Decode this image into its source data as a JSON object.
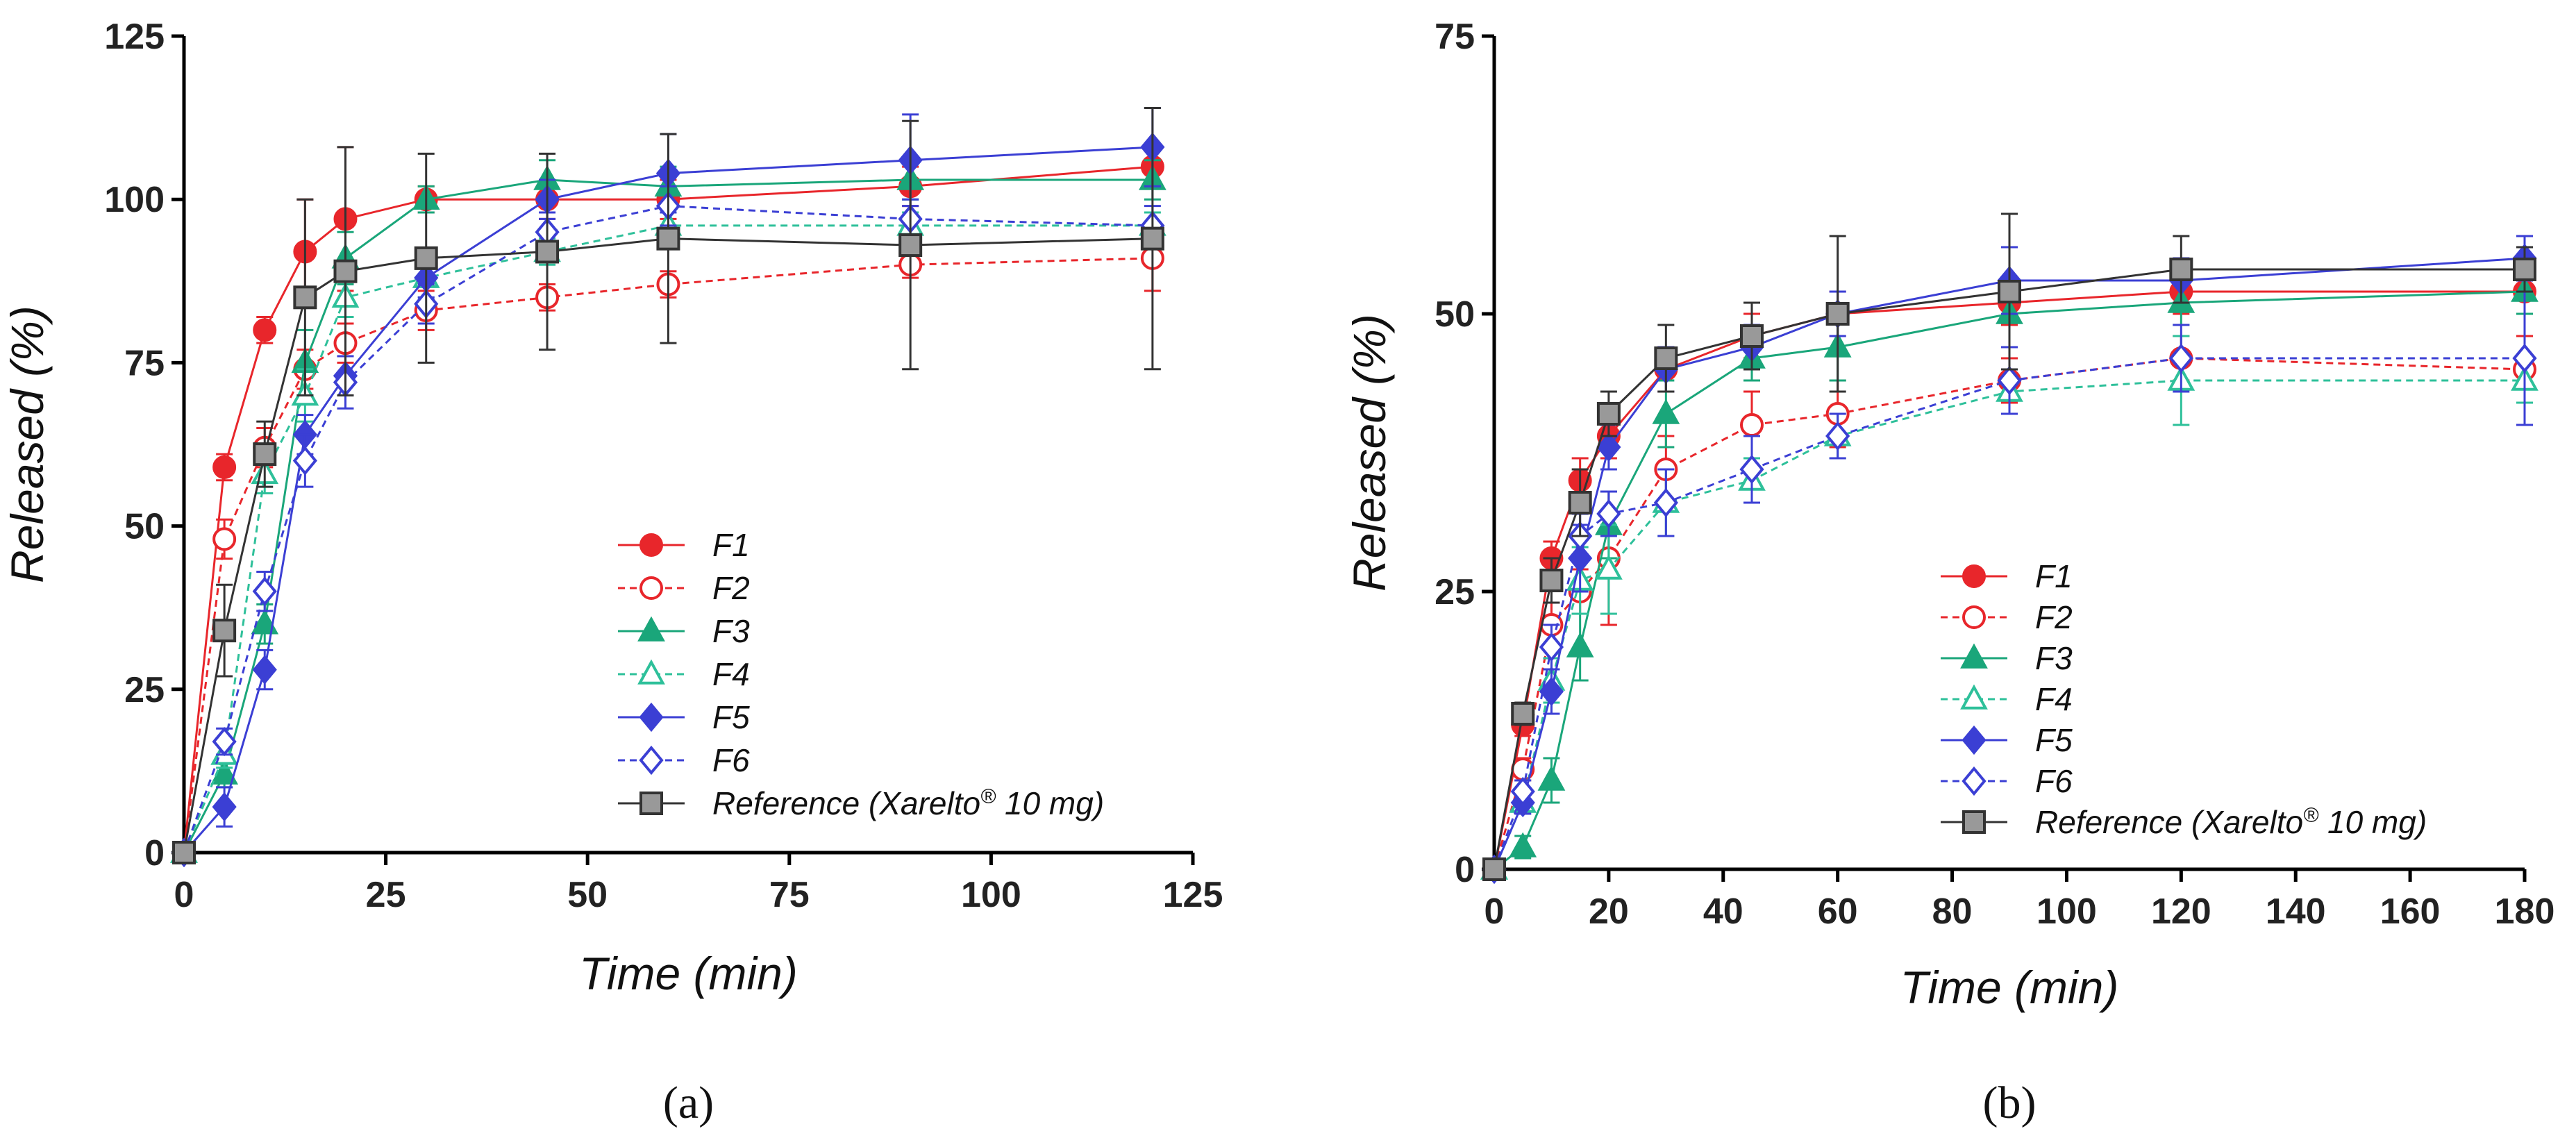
{
  "chart_data": [
    {
      "type": "line",
      "panel_label": "(a)",
      "xlabel": "Time (min)",
      "ylabel": "Released (%)",
      "xlim": [
        0,
        125
      ],
      "ylim": [
        0,
        125
      ],
      "xticks": [
        0,
        25,
        50,
        75,
        100,
        125
      ],
      "yticks": [
        0,
        25,
        50,
        75,
        100,
        125
      ],
      "xtick_labels": [
        "0",
        "25",
        "50",
        "75",
        "100",
        "125"
      ],
      "ytick_labels": [
        "0",
        "25",
        "50",
        "75",
        "100",
        "125"
      ],
      "grid": false,
      "legend_position": "lower-right",
      "series": [
        {
          "name": "F1",
          "color": "#e8262b",
          "marker": "circle",
          "filled": true,
          "dashed": false,
          "x": [
            0,
            5,
            10,
            15,
            20,
            30,
            45,
            60,
            90,
            120
          ],
          "y": [
            0,
            59,
            80,
            92,
            97,
            100,
            100,
            100,
            102,
            105
          ],
          "err": [
            0,
            2,
            2,
            8,
            11,
            2,
            3,
            3,
            3,
            3
          ]
        },
        {
          "name": "F2",
          "color": "#e8262b",
          "marker": "circle",
          "filled": false,
          "dashed": true,
          "x": [
            0,
            5,
            10,
            15,
            20,
            30,
            45,
            60,
            90,
            120
          ],
          "y": [
            0,
            48,
            62,
            74,
            78,
            83,
            85,
            87,
            90,
            91
          ],
          "err": [
            0,
            3,
            3,
            3,
            3,
            3,
            2,
            2,
            2,
            5
          ]
        },
        {
          "name": "F3",
          "color": "#1aa67a",
          "marker": "triangle",
          "filled": true,
          "dashed": false,
          "x": [
            0,
            5,
            10,
            15,
            20,
            30,
            45,
            60,
            90,
            120
          ],
          "y": [
            0,
            12,
            35,
            75,
            91,
            100,
            103,
            102,
            103,
            103
          ],
          "err": [
            0,
            2,
            3,
            5,
            4,
            2,
            3,
            3,
            3,
            3
          ]
        },
        {
          "name": "F4",
          "color": "#2ec09a",
          "marker": "triangle",
          "filled": false,
          "dashed": true,
          "x": [
            0,
            5,
            10,
            15,
            20,
            30,
            45,
            60,
            90,
            120
          ],
          "y": [
            0,
            15,
            58,
            70,
            85,
            88,
            92,
            96,
            96,
            96
          ],
          "err": [
            0,
            2,
            3,
            4,
            3,
            3,
            2,
            2,
            2,
            2
          ]
        },
        {
          "name": "F5",
          "color": "#3b3fd4",
          "marker": "diamond",
          "filled": true,
          "dashed": false,
          "x": [
            0,
            5,
            10,
            15,
            20,
            30,
            45,
            60,
            90,
            120
          ],
          "y": [
            0,
            7,
            28,
            64,
            73,
            88,
            100,
            104,
            106,
            108
          ],
          "err": [
            0,
            3,
            3,
            3,
            3,
            3,
            3,
            6,
            7,
            6
          ]
        },
        {
          "name": "F6",
          "color": "#3b3fd4",
          "marker": "diamond",
          "filled": false,
          "dashed": true,
          "x": [
            0,
            5,
            10,
            15,
            20,
            30,
            45,
            60,
            90,
            120
          ],
          "y": [
            0,
            17,
            40,
            60,
            72,
            84,
            95,
            99,
            97,
            96
          ],
          "err": [
            0,
            2,
            3,
            4,
            4,
            3,
            3,
            3,
            3,
            3
          ]
        },
        {
          "name": "Reference (Xarelto® 10 mg)",
          "color": "#333333",
          "marker": "square",
          "filled": true,
          "fill": "#999999",
          "dashed": false,
          "x": [
            0,
            5,
            10,
            15,
            20,
            30,
            45,
            60,
            90,
            120
          ],
          "y": [
            0,
            34,
            61,
            85,
            89,
            91,
            92,
            94,
            93,
            94
          ],
          "err": [
            0,
            7,
            5,
            15,
            19,
            16,
            15,
            16,
            19,
            20
          ]
        }
      ],
      "legend": {
        "labels": [
          "F1",
          "F2",
          "F3",
          "F4",
          "F5",
          "F6"
        ],
        "reference_prefix": "Reference (Xarelto",
        "reference_sup": "®",
        "reference_suffix": " 10 mg)"
      }
    },
    {
      "type": "line",
      "panel_label": "(b)",
      "xlabel": "Time (min)",
      "ylabel": "Released (%)",
      "xlim": [
        0,
        180
      ],
      "ylim": [
        0,
        75
      ],
      "xticks": [
        0,
        20,
        40,
        60,
        80,
        100,
        120,
        140,
        160,
        180
      ],
      "yticks": [
        0,
        25,
        50,
        75
      ],
      "xtick_labels": [
        "0",
        "20",
        "40",
        "60",
        "80",
        "100",
        "120",
        "140",
        "160",
        "180"
      ],
      "ytick_labels": [
        "0",
        "25",
        "50",
        "75"
      ],
      "grid": false,
      "legend_position": "lower-right",
      "series": [
        {
          "name": "F1",
          "color": "#e8262b",
          "marker": "circle",
          "filled": true,
          "dashed": false,
          "x": [
            0,
            5,
            10,
            15,
            20,
            30,
            45,
            60,
            90,
            120,
            180
          ],
          "y": [
            0,
            13,
            28,
            35,
            39,
            45,
            48,
            50,
            51,
            52,
            52
          ],
          "err": [
            0,
            1,
            1.5,
            2,
            2,
            2,
            2,
            2,
            2,
            2,
            2
          ]
        },
        {
          "name": "F2",
          "color": "#e8262b",
          "marker": "circle",
          "filled": false,
          "dashed": true,
          "x": [
            0,
            5,
            10,
            15,
            20,
            30,
            45,
            60,
            90,
            120,
            180
          ],
          "y": [
            0,
            9,
            22,
            25,
            28,
            36,
            40,
            41,
            44,
            46,
            45
          ],
          "err": [
            0,
            1,
            2,
            2,
            6,
            3,
            3,
            3,
            2,
            2,
            3
          ]
        },
        {
          "name": "F3",
          "color": "#1aa67a",
          "marker": "triangle",
          "filled": true,
          "dashed": false,
          "x": [
            0,
            5,
            10,
            15,
            20,
            30,
            45,
            60,
            90,
            120,
            180
          ],
          "y": [
            0,
            2,
            8,
            20,
            31,
            41,
            46,
            47,
            50,
            51,
            52
          ],
          "err": [
            0,
            1,
            2,
            3,
            3,
            3,
            2,
            3,
            3,
            2,
            2
          ]
        },
        {
          "name": "F4",
          "color": "#2ec09a",
          "marker": "triangle",
          "filled": false,
          "dashed": true,
          "x": [
            0,
            5,
            10,
            15,
            20,
            30,
            45,
            60,
            90,
            120,
            180
          ],
          "y": [
            0,
            6,
            17,
            26,
            27,
            33,
            35,
            39,
            43,
            44,
            44
          ],
          "err": [
            0,
            1,
            2,
            3,
            4,
            3,
            2,
            2,
            2,
            4,
            2
          ]
        },
        {
          "name": "F5",
          "color": "#3b3fd4",
          "marker": "diamond",
          "filled": true,
          "dashed": false,
          "x": [
            0,
            5,
            10,
            15,
            20,
            30,
            45,
            60,
            90,
            120,
            180
          ],
          "y": [
            0,
            6,
            16,
            28,
            38,
            45,
            47,
            50,
            53,
            53,
            55
          ],
          "err": [
            0,
            1,
            2,
            3,
            2,
            2,
            2,
            2,
            3,
            2,
            2
          ]
        },
        {
          "name": "F6",
          "color": "#3b3fd4",
          "marker": "diamond",
          "filled": false,
          "dashed": true,
          "x": [
            0,
            5,
            10,
            15,
            20,
            30,
            45,
            60,
            90,
            120,
            180
          ],
          "y": [
            0,
            7,
            20,
            30,
            32,
            33,
            36,
            39,
            44,
            46,
            46
          ],
          "err": [
            0,
            1,
            2,
            2,
            2,
            3,
            3,
            2,
            3,
            3,
            6
          ]
        },
        {
          "name": "Reference (Xarelto® 10 mg)",
          "color": "#333333",
          "marker": "square",
          "filled": true,
          "fill": "#999999",
          "dashed": false,
          "x": [
            0,
            5,
            10,
            15,
            20,
            30,
            45,
            60,
            90,
            120,
            180
          ],
          "y": [
            0,
            14,
            26,
            33,
            41,
            46,
            48,
            50,
            52,
            54,
            54
          ],
          "err": [
            0,
            1,
            2,
            3,
            2,
            3,
            3,
            7,
            7,
            3,
            2
          ]
        }
      ],
      "legend": {
        "labels": [
          "F1",
          "F2",
          "F3",
          "F4",
          "F5",
          "F6"
        ],
        "reference_prefix": "Reference (Xarelto",
        "reference_sup": "®",
        "reference_suffix": " 10 mg)"
      }
    }
  ]
}
